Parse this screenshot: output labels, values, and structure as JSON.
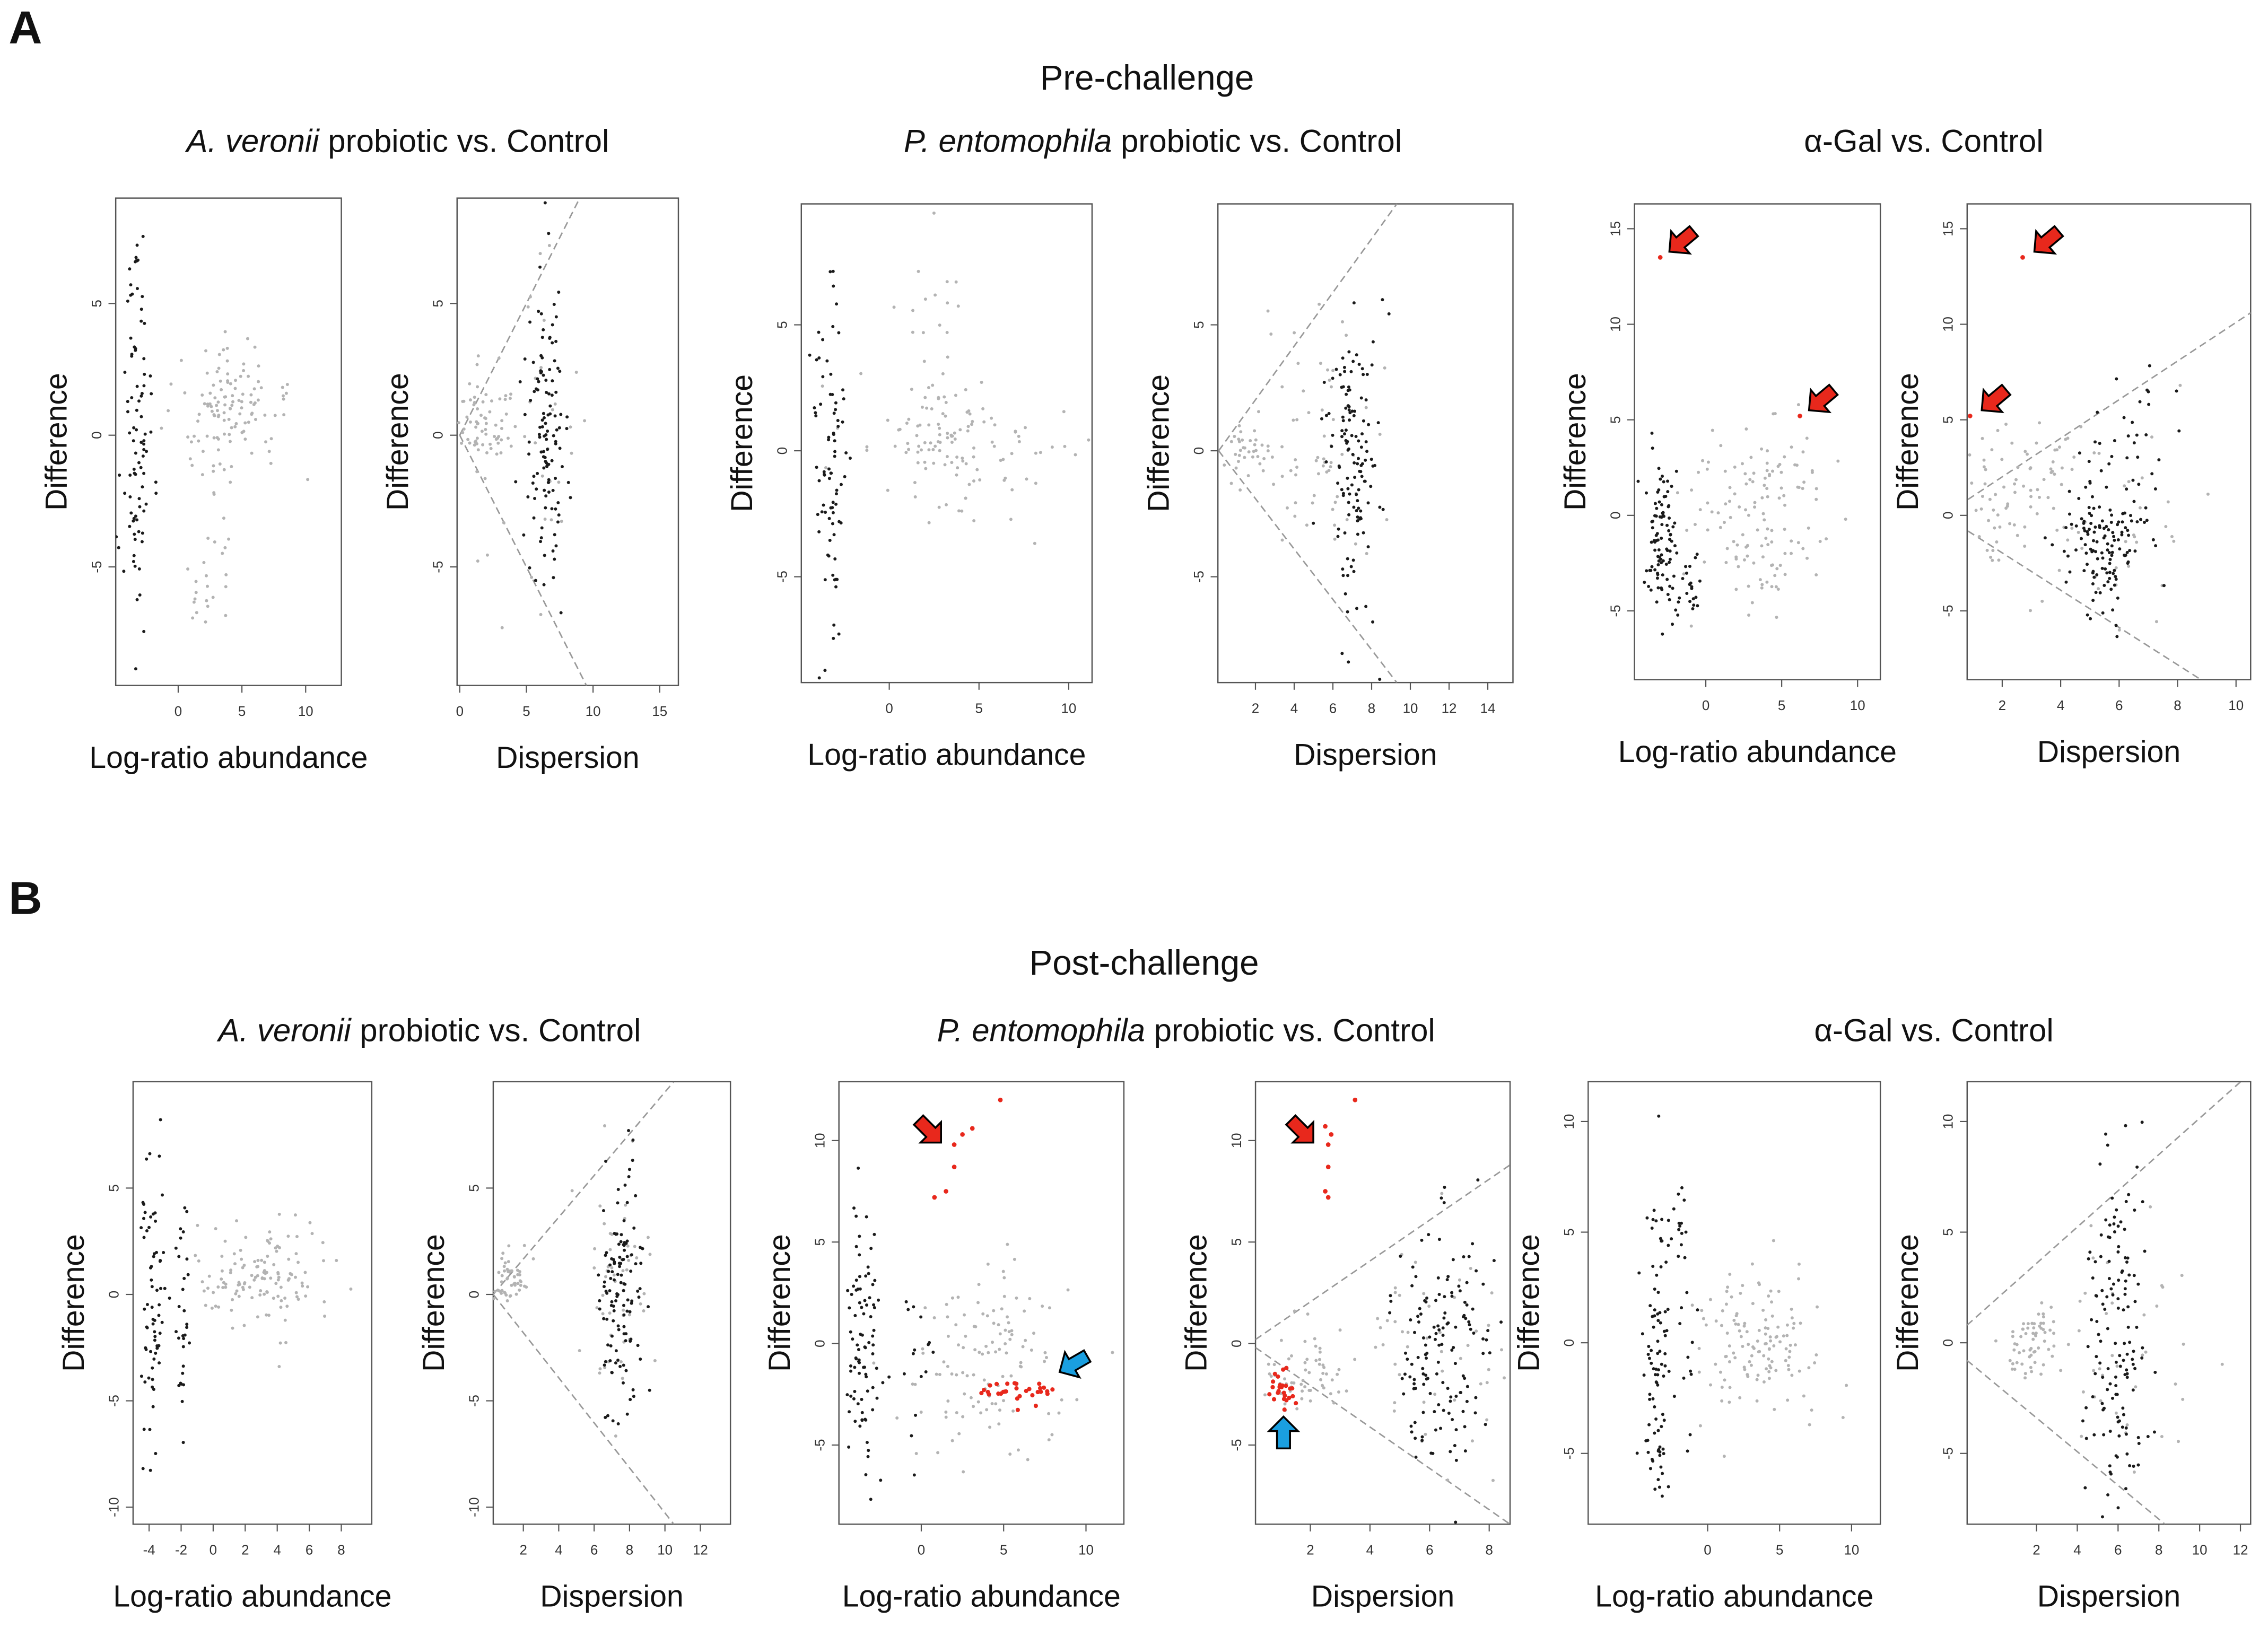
{
  "figure": {
    "label_a": "A",
    "label_b": "B",
    "pre_title": "Pre-challenge",
    "post_title": "Post-challenge"
  },
  "comparisons": [
    {
      "species": "A. veronii",
      "rest": " probiotic vs. Control"
    },
    {
      "species": "P. entomophila",
      "rest": " probiotic vs. Control"
    },
    {
      "species": "",
      "rest": "α-Gal vs. Control"
    },
    {
      "species": "A. veronii",
      "rest": " probiotic vs. Control"
    },
    {
      "species": "P. entomophila",
      "rest": " probiotic vs. Control"
    },
    {
      "species": "",
      "rest": "α-Gal vs. Control"
    }
  ],
  "colors": {
    "black": "#1a1a1a",
    "gray": "#b3b3b3",
    "red": "#e8281c",
    "blue": "#1a9fe0",
    "line": "#999999"
  },
  "chart_data": [
    {
      "type": "scatter",
      "xlabel": "Log-ratio abundance",
      "ylabel": "Difference",
      "xlim": [
        -4.9,
        12.8
      ],
      "ylim": [
        -9.5,
        9.0
      ],
      "xticks": [
        0,
        5,
        10
      ],
      "yticks": [
        -5,
        0,
        5
      ],
      "clusters": [
        {
          "n": 90,
          "x": -3.3,
          "sx": 0.6,
          "y": 0,
          "sy": 3.5,
          "c": "black"
        },
        {
          "n": 120,
          "x": 3.8,
          "sx": 2.2,
          "y": 0.8,
          "sy": 1.3,
          "c": "gray"
        },
        {
          "n": 25,
          "x": 2.5,
          "sx": 1.0,
          "y": -5,
          "sy": 2,
          "c": "gray"
        }
      ],
      "points": [],
      "lines": [],
      "arrows": []
    },
    {
      "type": "scatter",
      "xlabel": "Dispersion",
      "ylabel": "Difference",
      "xlim": [
        -0.2,
        16.4
      ],
      "ylim": [
        -9.5,
        9.0
      ],
      "xticks": [
        0,
        5,
        10,
        15
      ],
      "yticks": [
        -5,
        0,
        5
      ],
      "clusters": [
        {
          "n": 60,
          "x": 1.5,
          "sx": 1.0,
          "y": 0.5,
          "sy": 0.8,
          "c": "gray"
        },
        {
          "n": 120,
          "x": 6.5,
          "sx": 0.8,
          "y": 0,
          "sy": 3,
          "c": "black"
        },
        {
          "n": 40,
          "x": 5,
          "sx": 2,
          "y": 0,
          "sy": 3,
          "c": "gray"
        }
      ],
      "points": [],
      "lines": [
        [
          0,
          0,
          9.5,
          9.5
        ],
        [
          0,
          0,
          9.7,
          -9.7
        ]
      ],
      "arrows": []
    },
    {
      "type": "scatter",
      "xlabel": "Log-ratio abundance",
      "ylabel": "Difference",
      "xlim": [
        -4.9,
        11.3
      ],
      "ylim": [
        -9.2,
        9.8
      ],
      "xticks": [
        0,
        5,
        10
      ],
      "yticks": [
        -5,
        0,
        5
      ],
      "clusters": [
        {
          "n": 80,
          "x": -3.3,
          "sx": 0.5,
          "y": -1,
          "sy": 3.5,
          "c": "black"
        },
        {
          "n": 120,
          "x": 4,
          "sx": 2.5,
          "y": 0,
          "sy": 1.5,
          "c": "gray"
        },
        {
          "n": 20,
          "x": 2,
          "sx": 1,
          "y": 5,
          "sy": 2,
          "c": "gray"
        }
      ],
      "points": [],
      "lines": [],
      "arrows": []
    },
    {
      "type": "scatter",
      "xlabel": "Dispersion",
      "ylabel": "Difference",
      "xlim": [
        0.06,
        15.3
      ],
      "ylim": [
        -9.2,
        9.8
      ],
      "xticks": [
        2,
        4,
        6,
        8,
        10,
        12,
        14
      ],
      "yticks": [
        -5,
        0,
        5
      ],
      "clusters": [
        {
          "n": 40,
          "x": 1.5,
          "sx": 0.8,
          "y": 0,
          "sy": 0.6,
          "c": "gray"
        },
        {
          "n": 130,
          "x": 7,
          "sx": 0.7,
          "y": 0,
          "sy": 3,
          "c": "black"
        },
        {
          "n": 60,
          "x": 6,
          "sx": 1.5,
          "y": 0,
          "sy": 3,
          "c": "gray"
        }
      ],
      "points": [],
      "lines": [
        [
          0.1,
          0,
          9.3,
          9.8
        ],
        [
          0.1,
          0,
          9.3,
          -9.2
        ]
      ],
      "arrows": []
    },
    {
      "type": "scatter",
      "xlabel": "Log-ratio abundance",
      "ylabel": "Difference",
      "xlim": [
        -4.7,
        11.5
      ],
      "ylim": [
        -8.6,
        16.3
      ],
      "xticks": [
        0,
        5,
        10
      ],
      "yticks": [
        -5,
        0,
        5,
        10,
        15
      ],
      "clusters": [
        {
          "n": 90,
          "x": -3,
          "sx": 0.5,
          "y": -1,
          "sy": 2,
          "c": "black"
        },
        {
          "n": 25,
          "x": -1,
          "sx": 0.6,
          "y": -4,
          "sy": 1.2,
          "c": "black"
        },
        {
          "n": 130,
          "x": 3,
          "sx": 2.5,
          "y": 0,
          "sy": 3,
          "c": "gray"
        }
      ],
      "points": [
        [
          -3.0,
          13.5,
          "red"
        ],
        [
          6.2,
          5.2,
          "red"
        ]
      ],
      "lines": [],
      "arrows": [
        {
          "x": -2.4,
          "y": 13.8,
          "angle": 140,
          "c": "red"
        },
        {
          "x": 6.8,
          "y": 5.5,
          "angle": 140,
          "c": "red"
        }
      ]
    },
    {
      "type": "scatter",
      "xlabel": "Dispersion",
      "ylabel": "Difference",
      "xlim": [
        0.8,
        10.5
      ],
      "ylim": [
        -8.6,
        16.3
      ],
      "xticks": [
        2,
        4,
        6,
        8,
        10
      ],
      "yticks": [
        -5,
        0,
        5,
        10,
        15
      ],
      "clusters": [
        {
          "n": 70,
          "x": 2.5,
          "sx": 1.2,
          "y": 1.5,
          "sy": 2,
          "c": "gray"
        },
        {
          "n": 120,
          "x": 5.5,
          "sx": 0.7,
          "y": -1.5,
          "sy": 1.5,
          "c": "black"
        },
        {
          "n": 40,
          "x": 6.5,
          "sx": 1,
          "y": 3,
          "sy": 2.5,
          "c": "black"
        },
        {
          "n": 40,
          "x": 6,
          "sx": 2,
          "y": 0,
          "sy": 3,
          "c": "gray"
        }
      ],
      "points": [
        [
          2.7,
          13.5,
          "red"
        ],
        [
          0.9,
          5.2,
          "red"
        ]
      ],
      "lines": [
        [
          0.5,
          0.5,
          10.5,
          10.6
        ],
        [
          0.5,
          -0.5,
          8.8,
          -8.6
        ]
      ],
      "arrows": [
        {
          "x": 3.1,
          "y": 13.8,
          "angle": 140,
          "c": "red"
        },
        {
          "x": 1.3,
          "y": 5.5,
          "angle": 140,
          "c": "red"
        }
      ]
    },
    {
      "type": "scatter",
      "xlabel": "Log-ratio abundance",
      "ylabel": "Difference",
      "xlim": [
        -5.0,
        9.9
      ],
      "ylim": [
        -10.8,
        10.0
      ],
      "xticks": [
        -4,
        -2,
        0,
        2,
        4,
        6,
        8
      ],
      "yticks": [
        -10,
        -5,
        0,
        5
      ],
      "clusters": [
        {
          "n": 70,
          "x": -3.8,
          "sx": 0.4,
          "y": 0,
          "sy": 3.5,
          "c": "black"
        },
        {
          "n": 30,
          "x": -2,
          "sx": 0.3,
          "y": -1,
          "sy": 4,
          "c": "black"
        },
        {
          "n": 130,
          "x": 3,
          "sx": 2,
          "y": 0.8,
          "sy": 1.2,
          "c": "gray"
        }
      ],
      "points": [],
      "lines": [],
      "arrows": []
    },
    {
      "type": "scatter",
      "xlabel": "Dispersion",
      "ylabel": "Difference",
      "xlim": [
        0.3,
        13.7
      ],
      "ylim": [
        -10.8,
        10.0
      ],
      "xticks": [
        2,
        4,
        6,
        8,
        10,
        12
      ],
      "yticks": [
        -10,
        -5,
        0,
        5
      ],
      "clusters": [
        {
          "n": 50,
          "x": 1.2,
          "sx": 0.5,
          "y": 0.8,
          "sy": 0.6,
          "c": "gray"
        },
        {
          "n": 120,
          "x": 7.5,
          "sx": 0.6,
          "y": 0,
          "sy": 3,
          "c": "black"
        },
        {
          "n": 50,
          "x": 7.5,
          "sx": 1,
          "y": 0,
          "sy": 3,
          "c": "gray"
        }
      ],
      "points": [],
      "lines": [
        [
          0.3,
          0,
          10.5,
          10
        ],
        [
          0.3,
          0,
          10.5,
          -10.8
        ]
      ],
      "arrows": []
    },
    {
      "type": "scatter",
      "xlabel": "Log-ratio abundance",
      "ylabel": "Difference",
      "xlim": [
        -5.0,
        12.3
      ],
      "ylim": [
        -8.9,
        12.9
      ],
      "xticks": [
        0,
        5,
        10
      ],
      "yticks": [
        -5,
        0,
        5,
        10
      ],
      "clusters": [
        {
          "n": 90,
          "x": -3.5,
          "sx": 0.5,
          "y": 0,
          "sy": 3.5,
          "c": "black"
        },
        {
          "n": 15,
          "x": -0.5,
          "sx": 0.5,
          "y": -0.5,
          "sy": 2,
          "c": "black"
        },
        {
          "n": 120,
          "x": 3.5,
          "sx": 2.5,
          "y": -1,
          "sy": 2.5,
          "c": "gray"
        },
        {
          "n": 30,
          "x": 5.5,
          "sx": 1.7,
          "y": -2.3,
          "sy": 0.35,
          "c": "red"
        }
      ],
      "points": [
        [
          0.8,
          7.2,
          "red"
        ],
        [
          1.5,
          7.5,
          "red"
        ],
        [
          2.0,
          8.7,
          "red"
        ],
        [
          2.0,
          9.8,
          "red"
        ],
        [
          2.5,
          10.3,
          "red"
        ],
        [
          3.1,
          10.6,
          "red"
        ],
        [
          4.8,
          12.0,
          "red"
        ]
      ],
      "lines": [],
      "arrows": [
        {
          "x": 1.2,
          "y": 9.9,
          "angle": 45,
          "c": "red"
        },
        {
          "x": 8.4,
          "y": -1.4,
          "angle": 150,
          "c": "blue"
        }
      ]
    },
    {
      "type": "scatter",
      "xlabel": "Dispersion",
      "ylabel": "Difference",
      "xlim": [
        0.16,
        8.7
      ],
      "ylim": [
        -8.9,
        12.9
      ],
      "xticks": [
        2,
        4,
        6,
        8
      ],
      "yticks": [
        -5,
        0,
        5,
        10
      ],
      "clusters": [
        {
          "n": 25,
          "x": 1.0,
          "sx": 0.25,
          "y": -2.3,
          "sy": 0.5,
          "c": "red"
        },
        {
          "n": 60,
          "x": 1.8,
          "sx": 0.7,
          "y": -1.5,
          "sy": 1,
          "c": "gray"
        },
        {
          "n": 140,
          "x": 6.5,
          "sx": 0.8,
          "y": -0.5,
          "sy": 3,
          "c": "black"
        },
        {
          "n": 50,
          "x": 6,
          "sx": 1.5,
          "y": 0,
          "sy": 3,
          "c": "gray"
        }
      ],
      "points": [
        [
          2.5,
          10.7,
          "red"
        ],
        [
          2.6,
          9.8,
          "red"
        ],
        [
          2.7,
          10.3,
          "red"
        ],
        [
          2.6,
          8.7,
          "red"
        ],
        [
          2.5,
          7.5,
          "red"
        ],
        [
          2.6,
          7.2,
          "red"
        ],
        [
          3.5,
          12.0,
          "red"
        ]
      ],
      "lines": [
        [
          0.16,
          0.2,
          8.7,
          8.8
        ],
        [
          0.16,
          -0.2,
          8.7,
          -8.9
        ]
      ],
      "arrows": [
        {
          "x": 2.1,
          "y": 9.9,
          "angle": 45,
          "c": "red"
        },
        {
          "x": 1.1,
          "y": -3.6,
          "angle": -90,
          "c": "blue"
        }
      ]
    },
    {
      "type": "scatter",
      "xlabel": "Log-ratio abundance",
      "ylabel": "Difference",
      "xlim": [
        -8.3,
        12.0
      ],
      "ylim": [
        -8.2,
        11.8
      ],
      "xticks": [
        0,
        5,
        10
      ],
      "yticks": [
        -5,
        0,
        5,
        10
      ],
      "clusters": [
        {
          "n": 90,
          "x": -3.5,
          "sx": 0.5,
          "y": -1,
          "sy": 4,
          "c": "black"
        },
        {
          "n": 25,
          "x": -1.5,
          "sx": 0.4,
          "y": 2,
          "sy": 3,
          "c": "black"
        },
        {
          "n": 130,
          "x": 3.5,
          "sx": 2.2,
          "y": 0,
          "sy": 1.5,
          "c": "gray"
        }
      ],
      "points": [],
      "lines": [],
      "arrows": []
    },
    {
      "type": "scatter",
      "xlabel": "Dispersion",
      "ylabel": "Difference",
      "xlim": [
        -1.4,
        12.5
      ],
      "ylim": [
        -8.2,
        11.8
      ],
      "xticks": [
        2,
        4,
        6,
        8,
        10,
        12
      ],
      "yticks": [
        -5,
        0,
        5,
        10
      ],
      "clusters": [
        {
          "n": 60,
          "x": 1.8,
          "sx": 0.6,
          "y": 0,
          "sy": 0.8,
          "c": "gray"
        },
        {
          "n": 140,
          "x": 6,
          "sx": 0.8,
          "y": -0.5,
          "sy": 4,
          "c": "black"
        },
        {
          "n": 40,
          "x": 6,
          "sx": 2,
          "y": 0,
          "sy": 3,
          "c": "gray"
        }
      ],
      "points": [],
      "lines": [
        [
          -1.4,
          0.8,
          12.5,
          12.2
        ],
        [
          -1.4,
          -0.8,
          8.3,
          -8.2
        ]
      ],
      "arrows": []
    }
  ]
}
